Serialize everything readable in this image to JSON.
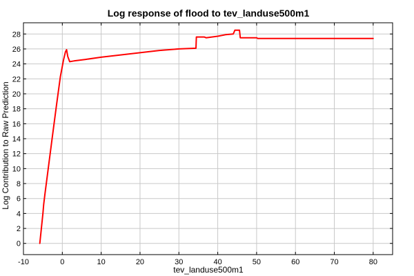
{
  "chart_data": {
    "type": "line",
    "title": "Log response of flood to tev_landuse500m1",
    "xlabel": "tev_landuse500m1",
    "ylabel": "Log Contribution to Raw Prediction",
    "xlim": [
      -10,
      85
    ],
    "ylim": [
      -1.5,
      29.5
    ],
    "x_ticks": [
      -10,
      0,
      10,
      20,
      30,
      40,
      50,
      60,
      70,
      80
    ],
    "y_ticks": [
      0,
      2,
      4,
      6,
      8,
      10,
      12,
      14,
      16,
      18,
      20,
      22,
      24,
      26,
      28
    ],
    "grid": true,
    "line_color": "#ff0000",
    "series": [
      {
        "x": [
          -5.8,
          -5.0,
          -4.8,
          -4.5,
          -3.5,
          -2.5,
          -1.5,
          -0.5,
          0.3,
          0.8,
          1.1,
          1.4,
          1.9,
          3.0,
          6.0,
          10.0,
          15.0,
          20.0,
          25.0,
          30.0,
          34.4,
          34.5,
          36.5,
          37.0,
          40.0,
          42.0,
          44.0,
          44.4,
          45.6,
          45.8,
          50.0,
          50.3,
          55.0,
          60.0,
          70.0,
          80.0
        ],
        "y": [
          0.0,
          4.0,
          5.2,
          6.5,
          10.5,
          14.5,
          18.5,
          22.3,
          24.5,
          25.6,
          25.9,
          25.0,
          24.3,
          24.4,
          24.6,
          24.9,
          25.2,
          25.5,
          25.8,
          26.0,
          26.1,
          27.6,
          27.6,
          27.5,
          27.7,
          27.9,
          28.0,
          28.5,
          28.5,
          27.5,
          27.5,
          27.4,
          27.4,
          27.4,
          27.4,
          27.4
        ]
      }
    ]
  }
}
